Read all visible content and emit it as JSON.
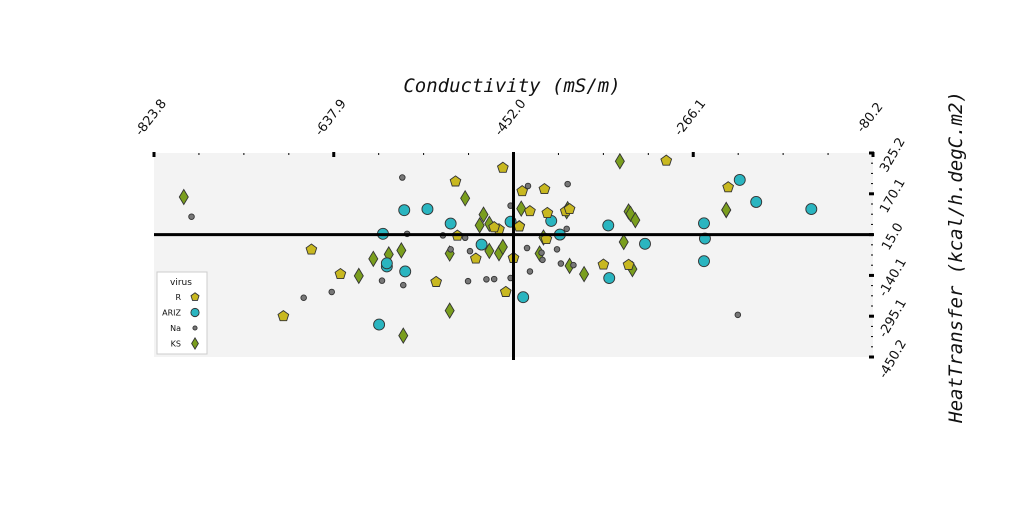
{
  "chart_data": {
    "type": "scatter",
    "title": "",
    "xlabel": "Conductivity (mS/m)",
    "ylabel": "HeatTransfer (kcal/h.degC.m2)",
    "xlim": [
      -823.8,
      -80.2
    ],
    "ylim": [
      -450.2,
      325.2
    ],
    "xticks": [
      "-823.8",
      "-637.9",
      "-452.0",
      "-266.1",
      "-80.2"
    ],
    "yticks": [
      "325.2",
      "170.1",
      "15.0",
      "-140.1",
      "-295.1",
      "-450.2"
    ],
    "crosshair": {
      "x": -452.0,
      "y": 15.0
    },
    "grid": false,
    "legend": {
      "title": "virus",
      "placement": "lower-left"
    },
    "series": [
      {
        "name": "R",
        "marker": "pentagon",
        "color": "#c8b820",
        "points": [
          [
            -463,
            269
          ],
          [
            -512,
            217
          ],
          [
            -446,
            47
          ],
          [
            -467,
            35
          ],
          [
            -443,
            180
          ],
          [
            -420,
            188
          ],
          [
            -435,
            104
          ],
          [
            -417,
            97
          ],
          [
            -398,
            104
          ],
          [
            -394,
            112
          ],
          [
            -446,
            46
          ],
          [
            -472,
            43
          ],
          [
            -510,
            11
          ],
          [
            -661,
            -42
          ],
          [
            -631,
            -135
          ],
          [
            -690,
            -295
          ],
          [
            -532,
            -165
          ],
          [
            -491,
            -76
          ],
          [
            -460,
            -203
          ],
          [
            -452,
            -74
          ],
          [
            -418,
            -2
          ],
          [
            -359,
            -99
          ],
          [
            -333,
            -100
          ],
          [
            -294,
            296
          ],
          [
            -230,
            195
          ]
        ]
      },
      {
        "name": "ARIZ",
        "marker": "circle",
        "color": "#2ab5c0",
        "points": [
          [
            -565,
            108
          ],
          [
            -541,
            112
          ],
          [
            -517,
            57
          ],
          [
            -587,
            18
          ],
          [
            -583,
            -106
          ],
          [
            -583,
            -94
          ],
          [
            -564,
            -125
          ],
          [
            -591,
            -327
          ],
          [
            -485,
            -23
          ],
          [
            -455,
            64
          ],
          [
            -413,
            67
          ],
          [
            -404,
            15
          ],
          [
            -442,
            -223
          ],
          [
            -354,
            50
          ],
          [
            -316,
            -20
          ],
          [
            -353,
            -150
          ],
          [
            -255,
            58
          ],
          [
            -254,
            0
          ],
          [
            -255,
            -86
          ],
          [
            -218,
            223
          ],
          [
            -201,
            139
          ],
          [
            -144,
            112
          ]
        ]
      },
      {
        "name": "Na",
        "marker": "small-circle",
        "color": "#777777",
        "points": [
          [
            -785,
            83
          ],
          [
            -567,
            232
          ],
          [
            -562,
            18
          ],
          [
            -525,
            12
          ],
          [
            -517,
            -41
          ],
          [
            -497,
            -48
          ],
          [
            -499,
            -162
          ],
          [
            -480,
            -155
          ],
          [
            -472,
            -154
          ],
          [
            -455,
            125
          ],
          [
            -437,
            200
          ],
          [
            -422,
            -81
          ],
          [
            -438,
            -36
          ],
          [
            -423,
            -54
          ],
          [
            -403,
            -95
          ],
          [
            -396,
            207
          ],
          [
            -390,
            -101
          ],
          [
            -407,
            -41
          ],
          [
            -435,
            -125
          ],
          [
            -455,
            -150
          ],
          [
            -588,
            -160
          ],
          [
            -640,
            -203
          ],
          [
            -669,
            -225
          ],
          [
            -566,
            -177
          ],
          [
            -502,
            3
          ],
          [
            -220,
            -290
          ],
          [
            -397,
            37
          ]
        ]
      },
      {
        "name": "KS",
        "marker": "diamond",
        "color": "#7a9e1e",
        "points": [
          [
            -793,
            158
          ],
          [
            -502,
            153
          ],
          [
            -483,
            91
          ],
          [
            -487,
            50
          ],
          [
            -477,
            56
          ],
          [
            -444,
            114
          ],
          [
            -421,
            4
          ],
          [
            -396,
            112
          ],
          [
            -397,
            104
          ],
          [
            -379,
            -135
          ],
          [
            -394,
            -104
          ],
          [
            -425,
            -57
          ],
          [
            -467,
            -56
          ],
          [
            -568,
            -45
          ],
          [
            -581,
            -60
          ],
          [
            -597,
            -77
          ],
          [
            -612,
            -142
          ],
          [
            -518,
            -274
          ],
          [
            -566,
            -369
          ],
          [
            -518,
            -57
          ],
          [
            -463,
            -32
          ],
          [
            -477,
            -47
          ],
          [
            -342,
            294
          ],
          [
            -333,
            103
          ],
          [
            -331,
            94
          ],
          [
            -326,
            70
          ],
          [
            -338,
            -13
          ],
          [
            -329,
            -116
          ],
          [
            -232,
            108
          ],
          [
            -232,
            109
          ]
        ]
      }
    ]
  }
}
